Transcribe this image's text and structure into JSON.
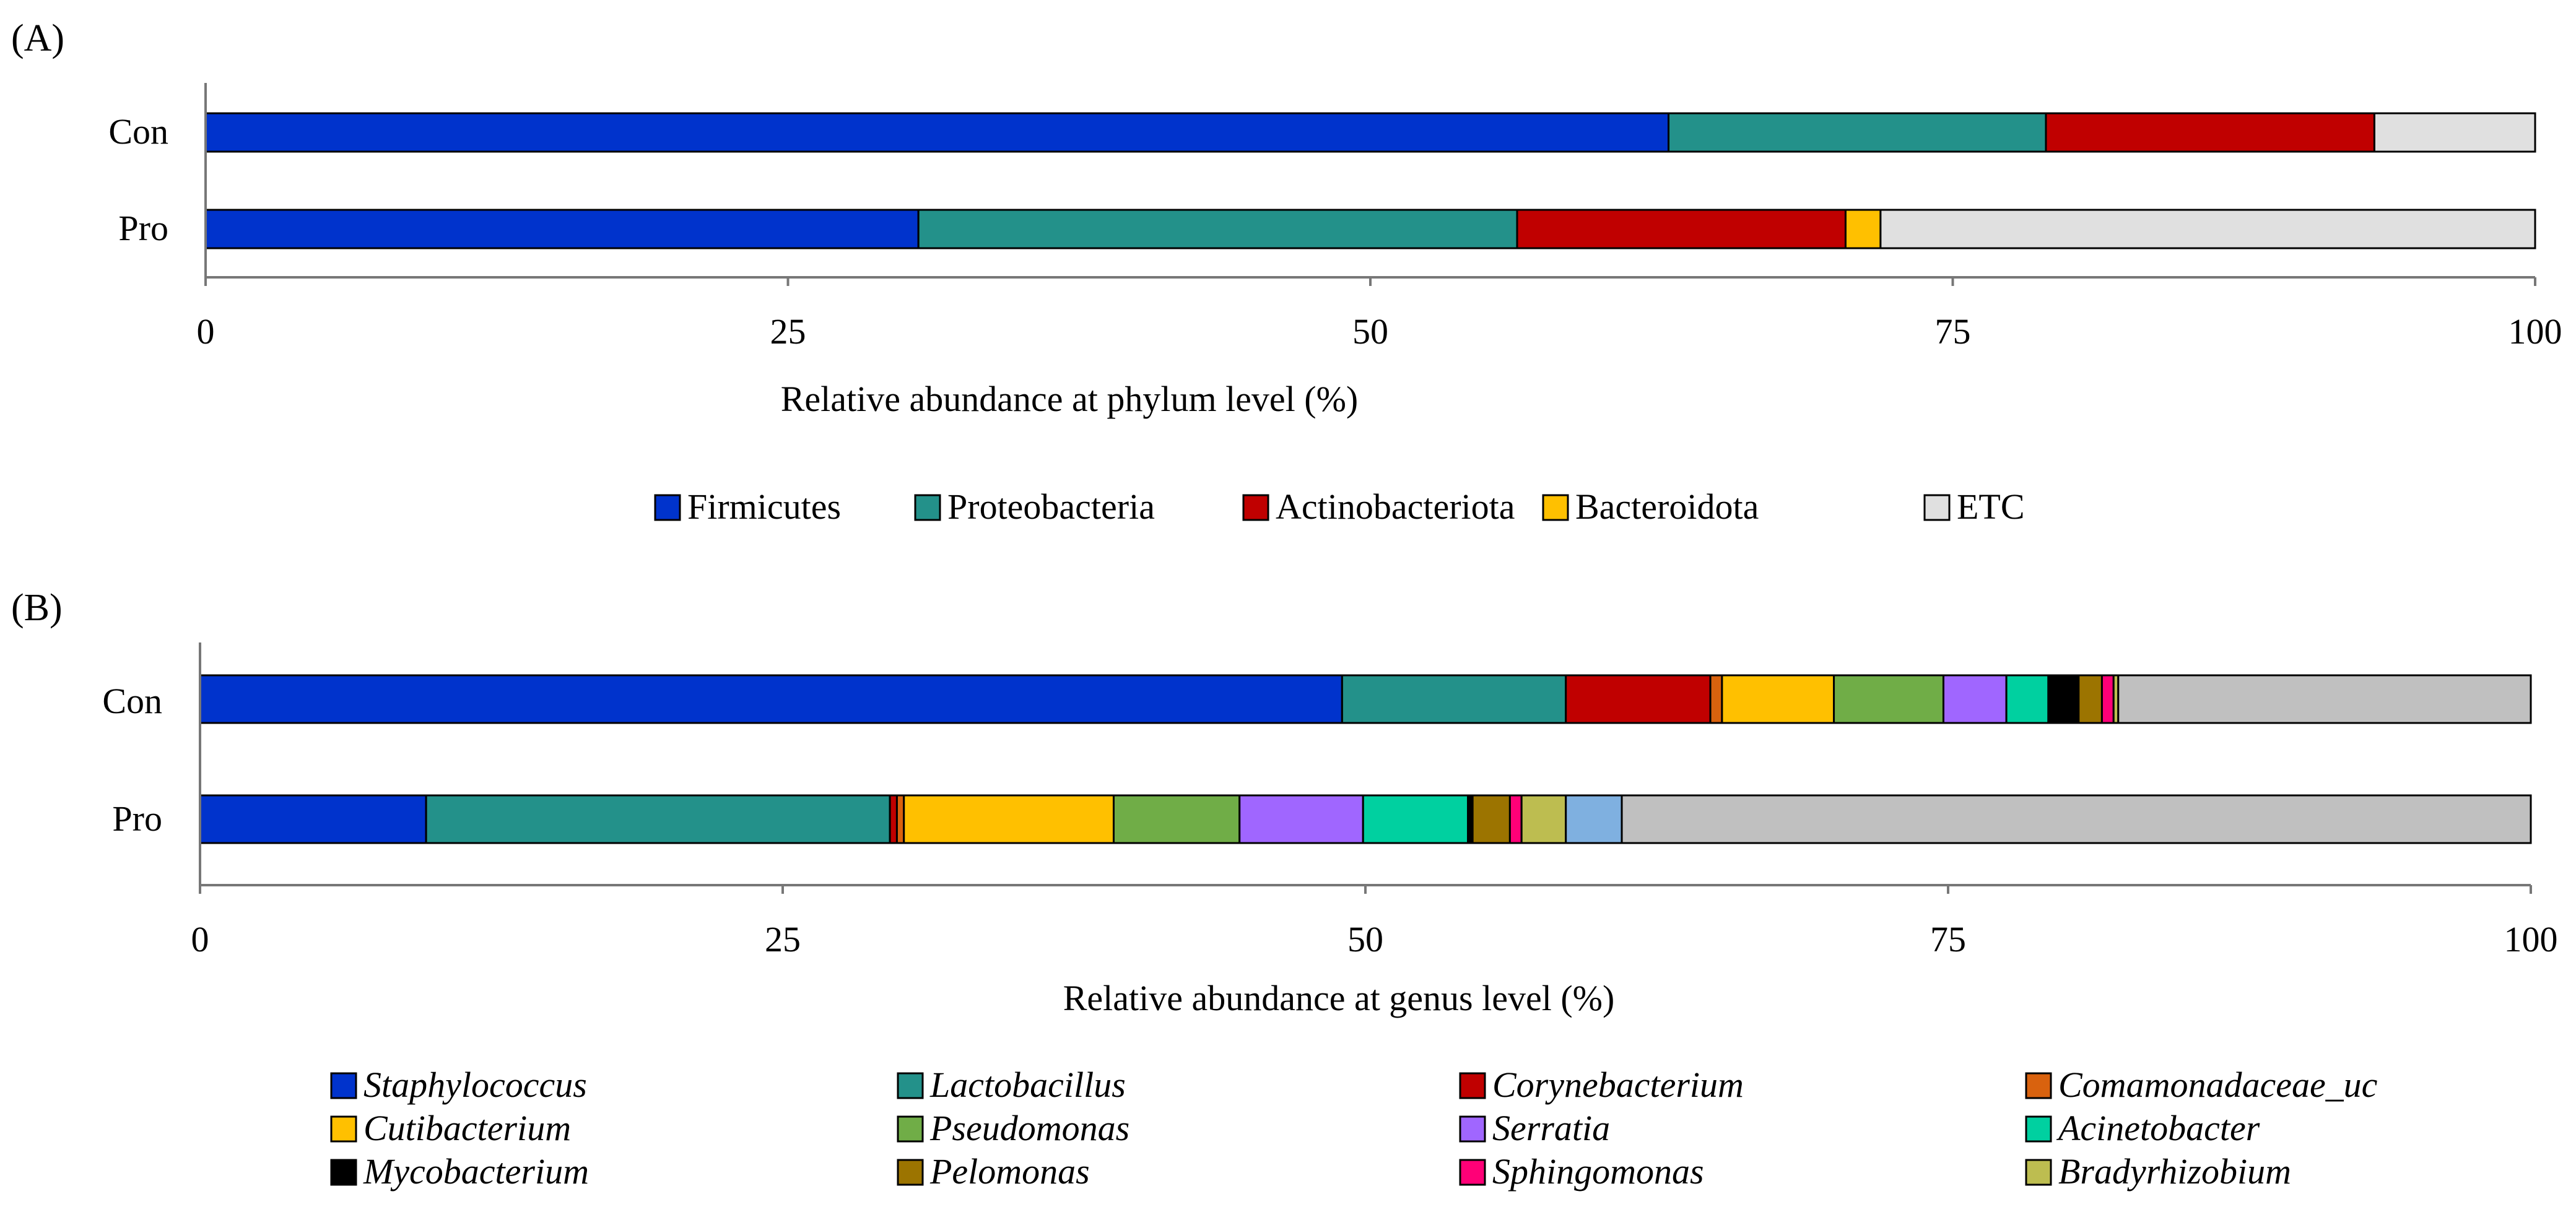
{
  "chart_data": [
    {
      "type": "bar",
      "stacked": true,
      "orientation": "horizontal",
      "panel_label": "(A)",
      "categories": [
        "Con",
        "Pro"
      ],
      "xlabel": "Relative abundance at phylum level (%)",
      "xlim": [
        0,
        100
      ],
      "xticks": [
        "0",
        "25",
        "50",
        "75",
        "100"
      ],
      "legend_position": "bottom",
      "series": [
        {
          "name": "Firmicutes",
          "color": "#0033cc",
          "italic": false,
          "values": [
            62.8,
            30.6
          ]
        },
        {
          "name": "Proteobacteria",
          "color": "#23918a",
          "italic": false,
          "values": [
            16.2,
            25.7
          ]
        },
        {
          "name": "Actinobacteriota",
          "color": "#c00000",
          "italic": false,
          "values": [
            14.1,
            14.1
          ]
        },
        {
          "name": "Bacteroidota",
          "color": "#ffc000",
          "italic": false,
          "values": [
            0.0,
            1.5
          ]
        },
        {
          "name": "ETC",
          "color": "#e0e0e0",
          "italic": false,
          "values": [
            6.9,
            28.1
          ]
        }
      ]
    },
    {
      "type": "bar",
      "stacked": true,
      "orientation": "horizontal",
      "panel_label": "(B)",
      "categories": [
        "Con",
        "Pro"
      ],
      "xlabel": "Relative abundance at genus level (%)",
      "xlim": [
        0,
        100
      ],
      "xticks": [
        "0",
        "25",
        "50",
        "75",
        "100"
      ],
      "legend_position": "bottom",
      "series": [
        {
          "name": "Staphylococcus",
          "color": "#0033cc",
          "italic": true,
          "values": [
            49.0,
            9.7
          ]
        },
        {
          "name": "Lactobacillus",
          "color": "#23918a",
          "italic": true,
          "values": [
            9.6,
            19.9
          ]
        },
        {
          "name": "Corynebacterium",
          "color": "#c00000",
          "italic": true,
          "values": [
            6.2,
            0.3
          ]
        },
        {
          "name": "Comamonadaceae_uc",
          "color": "#d9620e",
          "italic": true,
          "values": [
            0.5,
            0.3
          ]
        },
        {
          "name": "Cutibacterium",
          "color": "#ffc000",
          "italic": true,
          "values": [
            4.8,
            9.0
          ]
        },
        {
          "name": "Pseudomonas",
          "color": "#70ad47",
          "italic": true,
          "values": [
            4.7,
            5.4
          ]
        },
        {
          "name": "Serratia",
          "color": "#a066ff",
          "italic": true,
          "values": [
            2.7,
            5.3
          ]
        },
        {
          "name": "Acinetobacter",
          "color": "#00d0a0",
          "italic": true,
          "values": [
            1.8,
            4.5
          ]
        },
        {
          "name": "Mycobacterium",
          "color": "#000000",
          "italic": true,
          "values": [
            1.3,
            0.2
          ]
        },
        {
          "name": "Pelomonas",
          "color": "#9c7400",
          "italic": true,
          "values": [
            1.0,
            1.6
          ]
        },
        {
          "name": "Sphingomonas",
          "color": "#ff0077",
          "italic": true,
          "values": [
            0.5,
            0.5
          ]
        },
        {
          "name": "Bradyrhizobium",
          "color": "#bdbd50",
          "italic": true,
          "values": [
            0.2,
            1.9
          ]
        },
        {
          "name": "",
          "color": "#7fb0e0",
          "italic": false,
          "values": [
            0.0,
            2.4
          ]
        },
        {
          "name": "",
          "color": "#c0c0c0",
          "italic": false,
          "values": [
            17.7,
            39.0
          ]
        }
      ]
    }
  ]
}
